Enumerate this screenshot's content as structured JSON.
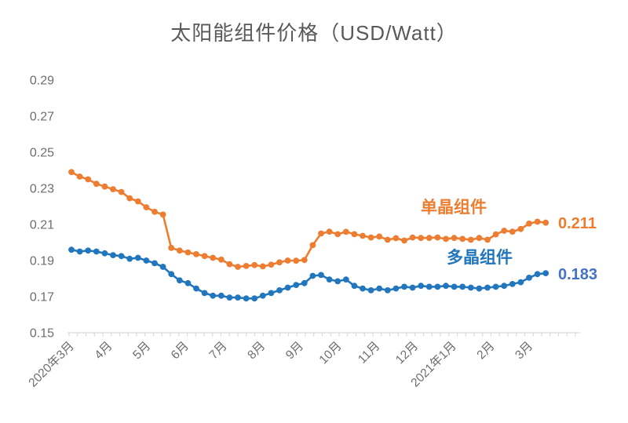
{
  "chart_data": {
    "type": "line",
    "title": "太阳能组件价格（USD/Watt）",
    "xlabel": "",
    "ylabel": "",
    "ylim": [
      0.15,
      0.29
    ],
    "y_tick_step": 0.02,
    "y_tick_labels": [
      "0.15",
      "0.17",
      "0.19",
      "0.21",
      "0.23",
      "0.25",
      "0.27",
      "0.29"
    ],
    "x_tick_labels": [
      "2020年3月",
      "4月",
      "5月",
      "6月",
      "7月",
      "8月",
      "9月",
      "10月",
      "11月",
      "12月",
      "2021年1月",
      "2月",
      "3月"
    ],
    "grid": false,
    "legend_position": "inline-labels",
    "axis_color": "#d9d9d9",
    "tick_text_color": "#6e6e6e",
    "series": [
      {
        "name": "单晶组件",
        "color": "#ED7D31",
        "value_label_color": "#ED7D31",
        "final_value_label": "0.211",
        "values": [
          0.239,
          0.2365,
          0.235,
          0.2325,
          0.231,
          0.2295,
          0.228,
          0.2245,
          0.2228,
          0.2195,
          0.217,
          0.2155,
          0.197,
          0.1955,
          0.1945,
          0.1935,
          0.1925,
          0.1915,
          0.1905,
          0.188,
          0.1865,
          0.187,
          0.1875,
          0.1868,
          0.1877,
          0.189,
          0.19,
          0.1899,
          0.1903,
          0.1985,
          0.205,
          0.206,
          0.2046,
          0.2059,
          0.2046,
          0.2037,
          0.2028,
          0.2033,
          0.2015,
          0.2024,
          0.2011,
          0.2028,
          0.2025,
          0.2025,
          0.2028,
          0.202,
          0.2025,
          0.202,
          0.2015,
          0.2025,
          0.2015,
          0.2045,
          0.2065,
          0.206,
          0.2075,
          0.2105,
          0.2115,
          0.211
        ]
      },
      {
        "name": "多晶组件",
        "color": "#2176BD",
        "value_label_color": "#4472C4",
        "final_value_label": "0.183",
        "values": [
          0.196,
          0.195,
          0.1955,
          0.195,
          0.194,
          0.193,
          0.1925,
          0.191,
          0.1915,
          0.19,
          0.1885,
          0.1865,
          0.1825,
          0.179,
          0.1775,
          0.1745,
          0.172,
          0.1705,
          0.1705,
          0.1695,
          0.1695,
          0.169,
          0.169,
          0.1705,
          0.172,
          0.1735,
          0.175,
          0.1765,
          0.1775,
          0.1815,
          0.182,
          0.1795,
          0.1785,
          0.1795,
          0.176,
          0.1745,
          0.1735,
          0.1745,
          0.1735,
          0.1745,
          0.1755,
          0.175,
          0.176,
          0.1755,
          0.1755,
          0.176,
          0.1755,
          0.1755,
          0.175,
          0.1745,
          0.175,
          0.1755,
          0.176,
          0.177,
          0.178,
          0.1805,
          0.1825,
          0.183
        ]
      }
    ]
  }
}
